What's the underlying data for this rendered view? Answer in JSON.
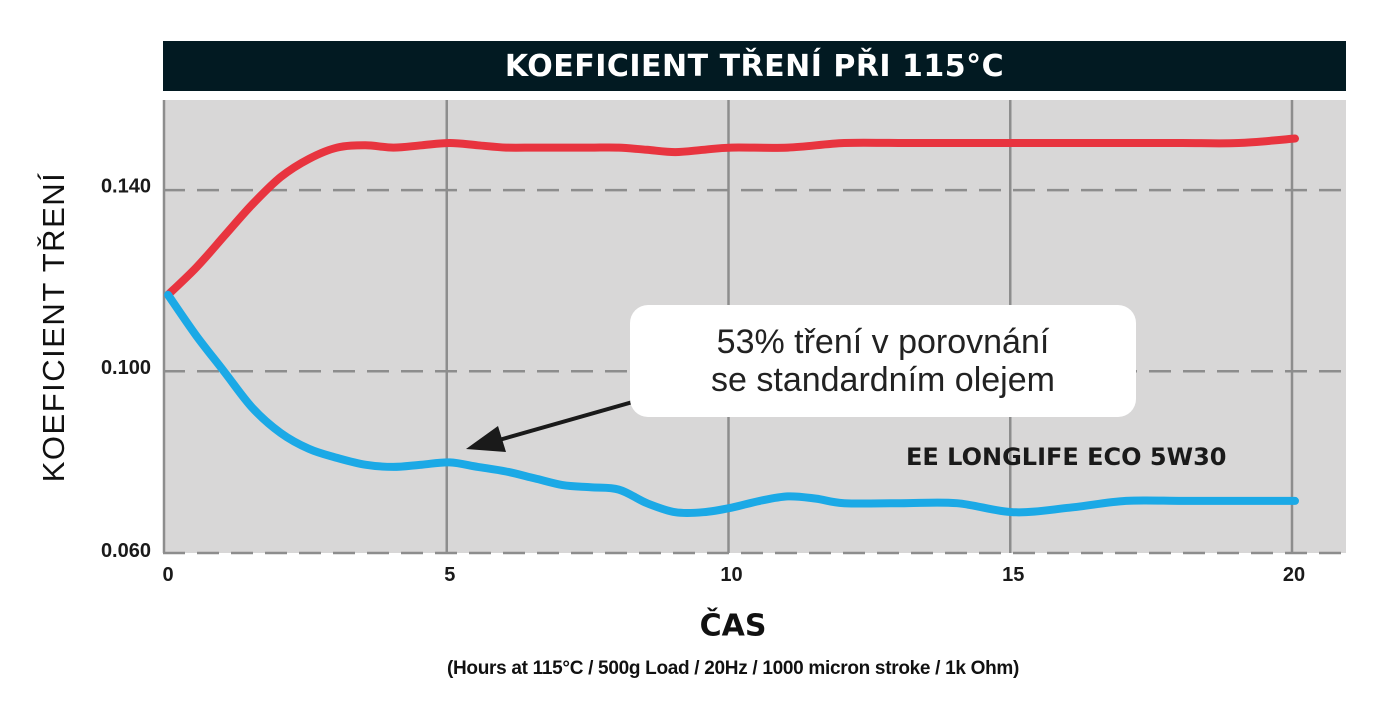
{
  "chart_data": {
    "type": "line",
    "title": "KOEFICIENT TŘENÍ PŘI 115°C",
    "xlabel": "ČAS",
    "xlabel_sub": "(Hours at 115°C / 500g Load / 20Hz / 1000 micron stroke / 1k Ohm)",
    "ylabel": "KOEFICIENT TŘENÍ",
    "xlim": [
      0,
      20
    ],
    "ylim": [
      0.06,
      0.16
    ],
    "x_ticks": [
      "0",
      "5",
      "10",
      "15",
      "20"
    ],
    "y_ticks": [
      "0.060",
      "0.100",
      "0.140"
    ],
    "grid": true,
    "annotation": {
      "lines": [
        "53% tření v porovnání",
        "se standardním olejem"
      ]
    },
    "series_label": "EE LONGLIFE ECO 5W30",
    "series": [
      {
        "color": "#e8343f",
        "x": [
          0,
          0.5,
          1,
          1.5,
          2,
          2.5,
          3,
          3.5,
          4,
          4.5,
          5,
          5.5,
          6,
          6.5,
          7,
          7.5,
          8,
          8.5,
          9,
          9.5,
          10,
          11,
          12,
          13,
          14,
          15,
          16,
          17,
          18,
          19,
          20
        ],
        "y": [
          0.117,
          0.123,
          0.13,
          0.137,
          0.143,
          0.147,
          0.1495,
          0.15,
          0.1495,
          0.15,
          0.1505,
          0.15,
          0.1495,
          0.1495,
          0.1495,
          0.1495,
          0.1495,
          0.149,
          0.1485,
          0.149,
          0.1495,
          0.1495,
          0.1505,
          0.1505,
          0.1505,
          0.1505,
          0.1505,
          0.1505,
          0.1505,
          0.1505,
          0.1515
        ]
      },
      {
        "color": "#1ba9e6",
        "x": [
          0,
          0.5,
          1,
          1.5,
          2,
          2.5,
          3,
          3.5,
          4,
          4.5,
          5,
          5.5,
          6,
          6.5,
          7,
          7.5,
          8,
          8.5,
          9,
          9.5,
          10,
          10.5,
          11,
          11.5,
          12,
          13,
          14,
          15,
          16,
          17,
          18,
          19,
          20
        ],
        "y": [
          0.117,
          0.108,
          0.1,
          0.092,
          0.0865,
          0.083,
          0.081,
          0.0795,
          0.079,
          0.0795,
          0.08,
          0.079,
          0.078,
          0.0765,
          0.075,
          0.0745,
          0.074,
          0.071,
          0.069,
          0.069,
          0.07,
          0.0715,
          0.0725,
          0.072,
          0.071,
          0.071,
          0.071,
          0.069,
          0.07,
          0.0715,
          0.0715,
          0.0715,
          0.0715
        ]
      }
    ]
  }
}
